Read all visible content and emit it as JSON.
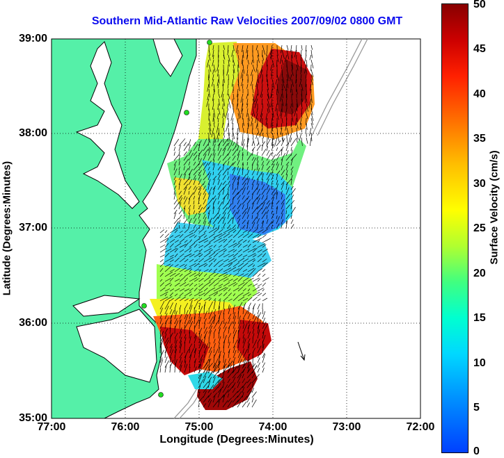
{
  "title": "Southern Mid-Atlantic Raw Velocities 2007/09/02 0800 GMT",
  "axes": {
    "xlabel": "Longitude (Degrees:Minutes)",
    "ylabel": "Latitude (Degrees:Minutes)",
    "xticks": [
      "77:00",
      "76:00",
      "75:00",
      "74:00",
      "73:00",
      "72:00"
    ],
    "yticks": [
      "39:00",
      "38:00",
      "37:00",
      "36:00",
      "35:00"
    ],
    "xlim": [
      -77,
      -72
    ],
    "ylim": [
      35,
      39
    ],
    "grid": true
  },
  "colorbar": {
    "label": "Surface Velocity (cm/s)",
    "ticks": [
      "50",
      "45",
      "40",
      "35",
      "30",
      "25",
      "20",
      "15",
      "10",
      "5",
      "0"
    ],
    "range": [
      0,
      50
    ]
  },
  "colors": {
    "land": "#55f0a8",
    "title": "#0a0aee",
    "coastline": "#000000",
    "bathymetry": "#999999",
    "station": "#22dd22"
  },
  "stations": [
    "station-1",
    "station-2",
    "station-3",
    "station-4"
  ]
}
